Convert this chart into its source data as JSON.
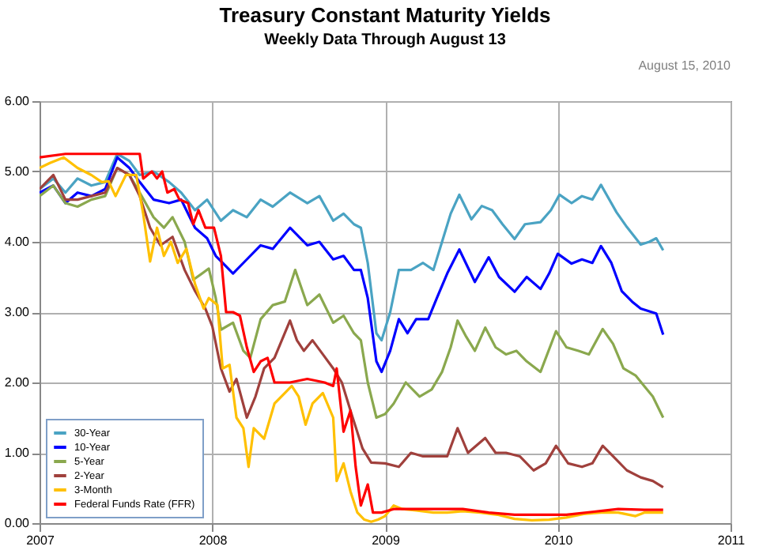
{
  "chart_data": {
    "type": "line",
    "title": "Treasury Constant Maturity Yields",
    "subtitle": "Weekly Data Through August 13",
    "annotations": [
      "August 15, 2010"
    ],
    "xlim": [
      2007,
      2011
    ],
    "xticks": [
      2007,
      2008,
      2009,
      2010,
      2011
    ],
    "ylim": [
      0,
      6
    ],
    "yticks": [
      {
        "value": 0,
        "label": "0.00"
      },
      {
        "value": 1,
        "label": "1.00"
      },
      {
        "value": 2,
        "label": "2.00"
      },
      {
        "value": 3,
        "label": "3.00"
      },
      {
        "value": 4,
        "label": "4.00"
      },
      {
        "value": 5,
        "label": "5.00"
      },
      {
        "value": 6,
        "label": "6.00"
      }
    ],
    "grid": true,
    "legend": "bottom left",
    "marker": "none",
    "line_style": "solid",
    "series": [
      {
        "name": "30-Year",
        "color": "#4aa3c3",
        "x": [
          2007.0,
          2007.08,
          2007.15,
          2007.22,
          2007.3,
          2007.38,
          2007.45,
          2007.52,
          2007.58,
          2007.66,
          2007.75,
          2007.82,
          2007.9,
          2007.97,
          2008.05,
          2008.12,
          2008.2,
          2008.28,
          2008.35,
          2008.45,
          2008.55,
          2008.62,
          2008.7,
          2008.76,
          2008.82,
          2008.86,
          2008.9,
          2008.95,
          2008.98,
          2009.03,
          2009.08,
          2009.15,
          2009.22,
          2009.28,
          2009.33,
          2009.38,
          2009.43,
          2009.5,
          2009.56,
          2009.62,
          2009.68,
          2009.75,
          2009.81,
          2009.9,
          2009.96,
          2010.01,
          2010.08,
          2010.14,
          2010.2,
          2010.25,
          2010.34,
          2010.4,
          2010.48,
          2010.53,
          2010.57,
          2010.61
        ],
        "values": [
          4.75,
          4.9,
          4.7,
          4.9,
          4.8,
          4.85,
          5.25,
          5.15,
          4.95,
          5.0,
          4.85,
          4.7,
          4.45,
          4.6,
          4.3,
          4.45,
          4.35,
          4.6,
          4.5,
          4.7,
          4.55,
          4.65,
          4.3,
          4.4,
          4.25,
          4.2,
          3.7,
          2.7,
          2.6,
          3.0,
          3.6,
          3.6,
          3.7,
          3.6,
          4.0,
          4.4,
          4.67,
          4.32,
          4.51,
          4.45,
          4.25,
          4.04,
          4.25,
          4.28,
          4.45,
          4.67,
          4.55,
          4.65,
          4.6,
          4.81,
          4.42,
          4.21,
          3.96,
          4.0,
          4.05,
          3.88
        ]
      },
      {
        "name": "10-Year",
        "color": "#0000ff",
        "x": [
          2007.0,
          2007.08,
          2007.15,
          2007.22,
          2007.3,
          2007.38,
          2007.45,
          2007.52,
          2007.58,
          2007.66,
          2007.75,
          2007.82,
          2007.9,
          2007.97,
          2008.02,
          2008.08,
          2008.12,
          2008.2,
          2008.28,
          2008.35,
          2008.45,
          2008.55,
          2008.62,
          2008.7,
          2008.76,
          2008.82,
          2008.86,
          2008.9,
          2008.95,
          2008.98,
          2009.03,
          2009.08,
          2009.13,
          2009.18,
          2009.25,
          2009.3,
          2009.36,
          2009.43,
          2009.52,
          2009.6,
          2009.66,
          2009.75,
          2009.82,
          2009.9,
          2009.95,
          2010.0,
          2010.08,
          2010.14,
          2010.2,
          2010.25,
          2010.31,
          2010.37,
          2010.43,
          2010.48,
          2010.57,
          2010.61
        ],
        "values": [
          4.7,
          4.8,
          4.55,
          4.7,
          4.65,
          4.75,
          5.2,
          5.05,
          4.85,
          4.6,
          4.55,
          4.6,
          4.2,
          4.05,
          3.8,
          3.65,
          3.55,
          3.75,
          3.95,
          3.9,
          4.2,
          3.95,
          4.0,
          3.75,
          3.8,
          3.6,
          3.6,
          3.2,
          2.3,
          2.15,
          2.45,
          2.9,
          2.7,
          2.9,
          2.9,
          3.2,
          3.55,
          3.89,
          3.43,
          3.78,
          3.5,
          3.29,
          3.5,
          3.33,
          3.55,
          3.83,
          3.69,
          3.75,
          3.7,
          3.94,
          3.7,
          3.3,
          3.15,
          3.05,
          2.98,
          2.68
        ]
      },
      {
        "name": "5-Year",
        "color": "#8aa84e",
        "x": [
          2007.0,
          2007.08,
          2007.15,
          2007.22,
          2007.3,
          2007.38,
          2007.45,
          2007.52,
          2007.58,
          2007.66,
          2007.72,
          2007.77,
          2007.84,
          2007.89,
          2007.98,
          2008.02,
          2008.05,
          2008.12,
          2008.18,
          2008.22,
          2008.28,
          2008.35,
          2008.42,
          2008.48,
          2008.55,
          2008.62,
          2008.7,
          2008.76,
          2008.82,
          2008.86,
          2008.9,
          2008.95,
          2009.0,
          2009.05,
          2009.12,
          2009.2,
          2009.27,
          2009.33,
          2009.38,
          2009.42,
          2009.47,
          2009.52,
          2009.58,
          2009.64,
          2009.7,
          2009.76,
          2009.82,
          2009.9,
          2009.99,
          2010.05,
          2010.12,
          2010.18,
          2010.26,
          2010.32,
          2010.38,
          2010.45,
          2010.5,
          2010.55,
          2010.61
        ],
        "values": [
          4.65,
          4.8,
          4.55,
          4.5,
          4.6,
          4.65,
          5.05,
          4.95,
          4.7,
          4.35,
          4.2,
          4.35,
          4.0,
          3.46,
          3.62,
          3.2,
          2.75,
          2.85,
          2.45,
          2.35,
          2.9,
          3.1,
          3.15,
          3.6,
          3.1,
          3.25,
          2.85,
          2.95,
          2.7,
          2.6,
          2.0,
          1.5,
          1.55,
          1.7,
          2.0,
          1.8,
          1.9,
          2.15,
          2.5,
          2.88,
          2.65,
          2.45,
          2.78,
          2.5,
          2.4,
          2.45,
          2.3,
          2.15,
          2.73,
          2.5,
          2.45,
          2.4,
          2.76,
          2.55,
          2.2,
          2.1,
          1.95,
          1.8,
          1.5
        ]
      },
      {
        "name": "2-Year",
        "color": "#a0403c",
        "x": [
          2007.0,
          2007.08,
          2007.15,
          2007.22,
          2007.3,
          2007.38,
          2007.45,
          2007.52,
          2007.58,
          2007.64,
          2007.7,
          2007.77,
          2007.84,
          2007.9,
          2007.96,
          2008.0,
          2008.05,
          2008.1,
          2008.14,
          2008.2,
          2008.25,
          2008.3,
          2008.36,
          2008.45,
          2008.49,
          2008.53,
          2008.58,
          2008.64,
          2008.7,
          2008.75,
          2008.8,
          2008.87,
          2008.92,
          2009.0,
          2009.08,
          2009.15,
          2009.22,
          2009.3,
          2009.36,
          2009.42,
          2009.48,
          2009.58,
          2009.64,
          2009.7,
          2009.78,
          2009.86,
          2009.93,
          2009.99,
          2010.06,
          2010.14,
          2010.2,
          2010.26,
          2010.32,
          2010.4,
          2010.48,
          2010.55,
          2010.61
        ],
        "values": [
          4.75,
          4.95,
          4.6,
          4.6,
          4.65,
          4.7,
          5.05,
          4.95,
          4.65,
          4.2,
          3.95,
          4.07,
          3.6,
          3.3,
          3.05,
          2.8,
          2.2,
          1.87,
          2.05,
          1.5,
          1.8,
          2.2,
          2.35,
          2.88,
          2.6,
          2.45,
          2.6,
          2.4,
          2.2,
          2.0,
          1.6,
          1.06,
          0.86,
          0.85,
          0.8,
          1.0,
          0.95,
          0.95,
          0.95,
          1.35,
          1.0,
          1.21,
          1.0,
          1.0,
          0.95,
          0.75,
          0.85,
          1.1,
          0.85,
          0.8,
          0.85,
          1.1,
          0.95,
          0.75,
          0.65,
          0.6,
          0.51
        ]
      },
      {
        "name": "3-Month",
        "color": "#ffc000",
        "x": [
          2007.0,
          2007.06,
          2007.14,
          2007.22,
          2007.3,
          2007.36,
          2007.4,
          2007.44,
          2007.5,
          2007.56,
          2007.6,
          2007.64,
          2007.68,
          2007.72,
          2007.76,
          2007.8,
          2007.85,
          2007.9,
          2007.95,
          2007.98,
          2008.03,
          2008.06,
          2008.1,
          2008.14,
          2008.18,
          2008.21,
          2008.24,
          2008.3,
          2008.36,
          2008.42,
          2008.46,
          2008.5,
          2008.54,
          2008.58,
          2008.64,
          2008.7,
          2008.72,
          2008.76,
          2008.8,
          2008.84,
          2008.88,
          2008.92,
          2008.96,
          2009.0,
          2009.05,
          2009.1,
          2009.18,
          2009.28,
          2009.36,
          2009.45,
          2009.55,
          2009.65,
          2009.75,
          2009.85,
          2009.95,
          2010.05,
          2010.15,
          2010.25,
          2010.35,
          2010.45,
          2010.5,
          2010.61
        ],
        "values": [
          5.05,
          5.12,
          5.2,
          5.05,
          4.95,
          4.85,
          4.86,
          4.65,
          4.95,
          4.95,
          4.4,
          3.72,
          4.2,
          3.8,
          4.0,
          3.7,
          3.9,
          3.4,
          3.05,
          3.2,
          3.1,
          2.2,
          2.25,
          1.5,
          1.35,
          0.8,
          1.35,
          1.2,
          1.7,
          1.85,
          1.95,
          1.8,
          1.4,
          1.7,
          1.85,
          1.5,
          0.6,
          0.85,
          0.45,
          0.15,
          0.05,
          0.02,
          0.05,
          0.1,
          0.25,
          0.2,
          0.18,
          0.15,
          0.15,
          0.17,
          0.15,
          0.12,
          0.06,
          0.04,
          0.05,
          0.08,
          0.13,
          0.15,
          0.15,
          0.1,
          0.15,
          0.15
        ]
      },
      {
        "name": "Federal Funds Rate (FFR)",
        "color": "#ff0000",
        "x": [
          2007.0,
          2007.15,
          2007.3,
          2007.45,
          2007.58,
          2007.6,
          2007.65,
          2007.68,
          2007.71,
          2007.74,
          2007.78,
          2007.81,
          2007.86,
          2007.89,
          2007.92,
          2007.96,
          2008.01,
          2008.05,
          2008.08,
          2008.12,
          2008.16,
          2008.2,
          2008.24,
          2008.28,
          2008.32,
          2008.36,
          2008.45,
          2008.55,
          2008.65,
          2008.7,
          2008.72,
          2008.76,
          2008.8,
          2008.83,
          2008.86,
          2008.9,
          2008.93,
          2008.98,
          2009.05,
          2009.15,
          2009.3,
          2009.45,
          2009.6,
          2009.75,
          2009.9,
          2010.05,
          2010.2,
          2010.35,
          2010.5,
          2010.61
        ],
        "values": [
          5.2,
          5.25,
          5.25,
          5.25,
          5.25,
          4.9,
          5.0,
          4.9,
          5.0,
          4.7,
          4.75,
          4.6,
          4.55,
          4.25,
          4.45,
          4.2,
          4.2,
          3.8,
          3.0,
          3.0,
          2.95,
          2.5,
          2.15,
          2.3,
          2.35,
          2.0,
          2.0,
          2.05,
          2.0,
          1.95,
          2.2,
          1.3,
          1.6,
          0.8,
          0.25,
          0.55,
          0.15,
          0.15,
          0.2,
          0.2,
          0.2,
          0.2,
          0.15,
          0.12,
          0.12,
          0.12,
          0.16,
          0.2,
          0.19,
          0.19
        ]
      }
    ]
  }
}
